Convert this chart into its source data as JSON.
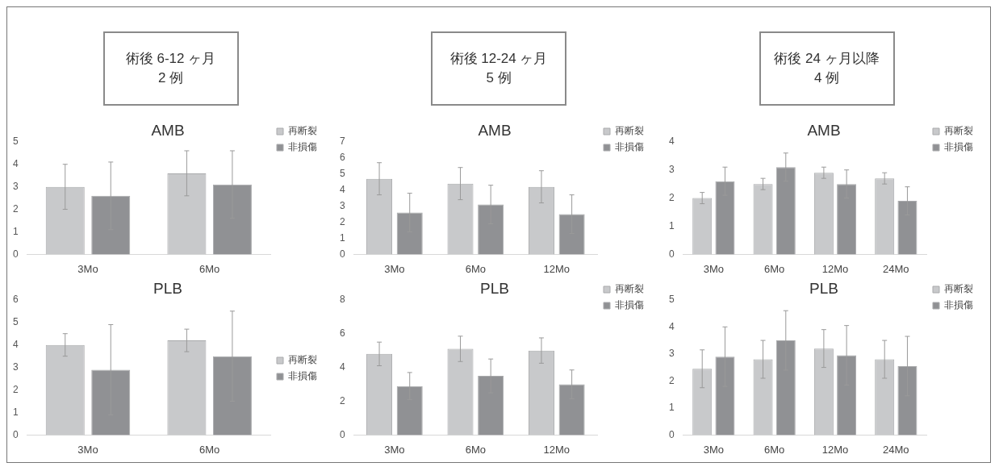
{
  "chart_data": [
    {
      "type": "other",
      "title": "術後 6-12 ヶ月",
      "subtitle": "2 例"
    },
    {
      "type": "other",
      "title": "術後 12-24 ヶ月",
      "subtitle": "5 例"
    },
    {
      "type": "other",
      "title": "術後 24 ヶ月以降",
      "subtitle": "4 例"
    },
    {
      "type": "bar",
      "title": "AMB",
      "categories": [
        "3Mo",
        "6Mo"
      ],
      "ylim": [
        0,
        5
      ],
      "yticks": [
        0,
        1,
        2,
        3,
        4,
        5
      ],
      "legend": "top right",
      "series": [
        {
          "name": "再断裂",
          "color": "#c8c9cb",
          "values": [
            3.0,
            3.6
          ],
          "errors": [
            1.0,
            1.0
          ]
        },
        {
          "name": "非損傷",
          "color": "#909194",
          "values": [
            2.6,
            3.1
          ],
          "errors": [
            1.5,
            1.5
          ]
        }
      ]
    },
    {
      "type": "bar",
      "title": "AMB",
      "categories": [
        "3Mo",
        "6Mo",
        "12Mo"
      ],
      "ylim": [
        0,
        7
      ],
      "yticks": [
        0,
        1,
        2,
        3,
        4,
        5,
        6,
        7
      ],
      "legend": "top right",
      "series": [
        {
          "name": "再断裂",
          "color": "#c8c9cb",
          "values": [
            4.7,
            4.4,
            4.2
          ],
          "errors": [
            1.0,
            1.0,
            1.0
          ]
        },
        {
          "name": "非損傷",
          "color": "#909194",
          "values": [
            2.6,
            3.1,
            2.5
          ],
          "errors": [
            1.2,
            1.2,
            1.2
          ]
        }
      ]
    },
    {
      "type": "bar",
      "title": "AMB",
      "categories": [
        "3Mo",
        "6Mo",
        "12Mo",
        "24Mo"
      ],
      "ylim": [
        0,
        4
      ],
      "yticks": [
        0,
        1,
        2,
        3,
        4
      ],
      "legend": "top right",
      "series": [
        {
          "name": "再断裂",
          "color": "#c8c9cb",
          "values": [
            2.0,
            2.5,
            2.9,
            2.7
          ],
          "errors": [
            0.2,
            0.2,
            0.2,
            0.2
          ]
        },
        {
          "name": "非損傷",
          "color": "#909194",
          "values": [
            2.6,
            3.1,
            2.5,
            1.9
          ],
          "errors": [
            0.5,
            0.5,
            0.5,
            0.5
          ]
        }
      ]
    },
    {
      "type": "bar",
      "title": "PLB",
      "categories": [
        "3Mo",
        "6Mo"
      ],
      "ylim": [
        0,
        6
      ],
      "yticks": [
        0,
        1,
        2,
        3,
        4,
        5,
        6
      ],
      "legend": "right",
      "series": [
        {
          "name": "再断裂",
          "color": "#c8c9cb",
          "values": [
            4.0,
            4.2
          ],
          "errors": [
            0.5,
            0.5
          ]
        },
        {
          "name": "非損傷",
          "color": "#909194",
          "values": [
            2.9,
            3.5
          ],
          "errors": [
            2.0,
            2.0
          ]
        }
      ]
    },
    {
      "type": "bar",
      "title": "PLB",
      "categories": [
        "3Mo",
        "6Mo",
        "12Mo"
      ],
      "ylim": [
        0,
        8
      ],
      "yticks": [
        0,
        2,
        4,
        6,
        8
      ],
      "legend": "top right",
      "series": [
        {
          "name": "再断裂",
          "color": "#c8c9cb",
          "values": [
            4.8,
            5.1,
            5.0
          ],
          "errors": [
            0.7,
            0.75,
            0.75
          ]
        },
        {
          "name": "非損傷",
          "color": "#909194",
          "values": [
            2.9,
            3.5,
            3.0
          ],
          "errors": [
            0.8,
            1.0,
            0.85
          ]
        }
      ]
    },
    {
      "type": "bar",
      "title": "PLB",
      "categories": [
        "3Mo",
        "6Mo",
        "12Mo",
        "24Mo"
      ],
      "ylim": [
        0,
        5
      ],
      "yticks": [
        0,
        1,
        2,
        3,
        4,
        5
      ],
      "legend": "top right",
      "series": [
        {
          "name": "再断裂",
          "color": "#c8c9cb",
          "values": [
            2.45,
            2.8,
            3.2,
            2.8
          ],
          "errors": [
            0.7,
            0.7,
            0.7,
            0.7
          ]
        },
        {
          "name": "非損傷",
          "color": "#909194",
          "values": [
            2.9,
            3.5,
            2.95,
            2.55
          ],
          "errors": [
            1.1,
            1.1,
            1.1,
            1.1
          ]
        }
      ]
    }
  ]
}
